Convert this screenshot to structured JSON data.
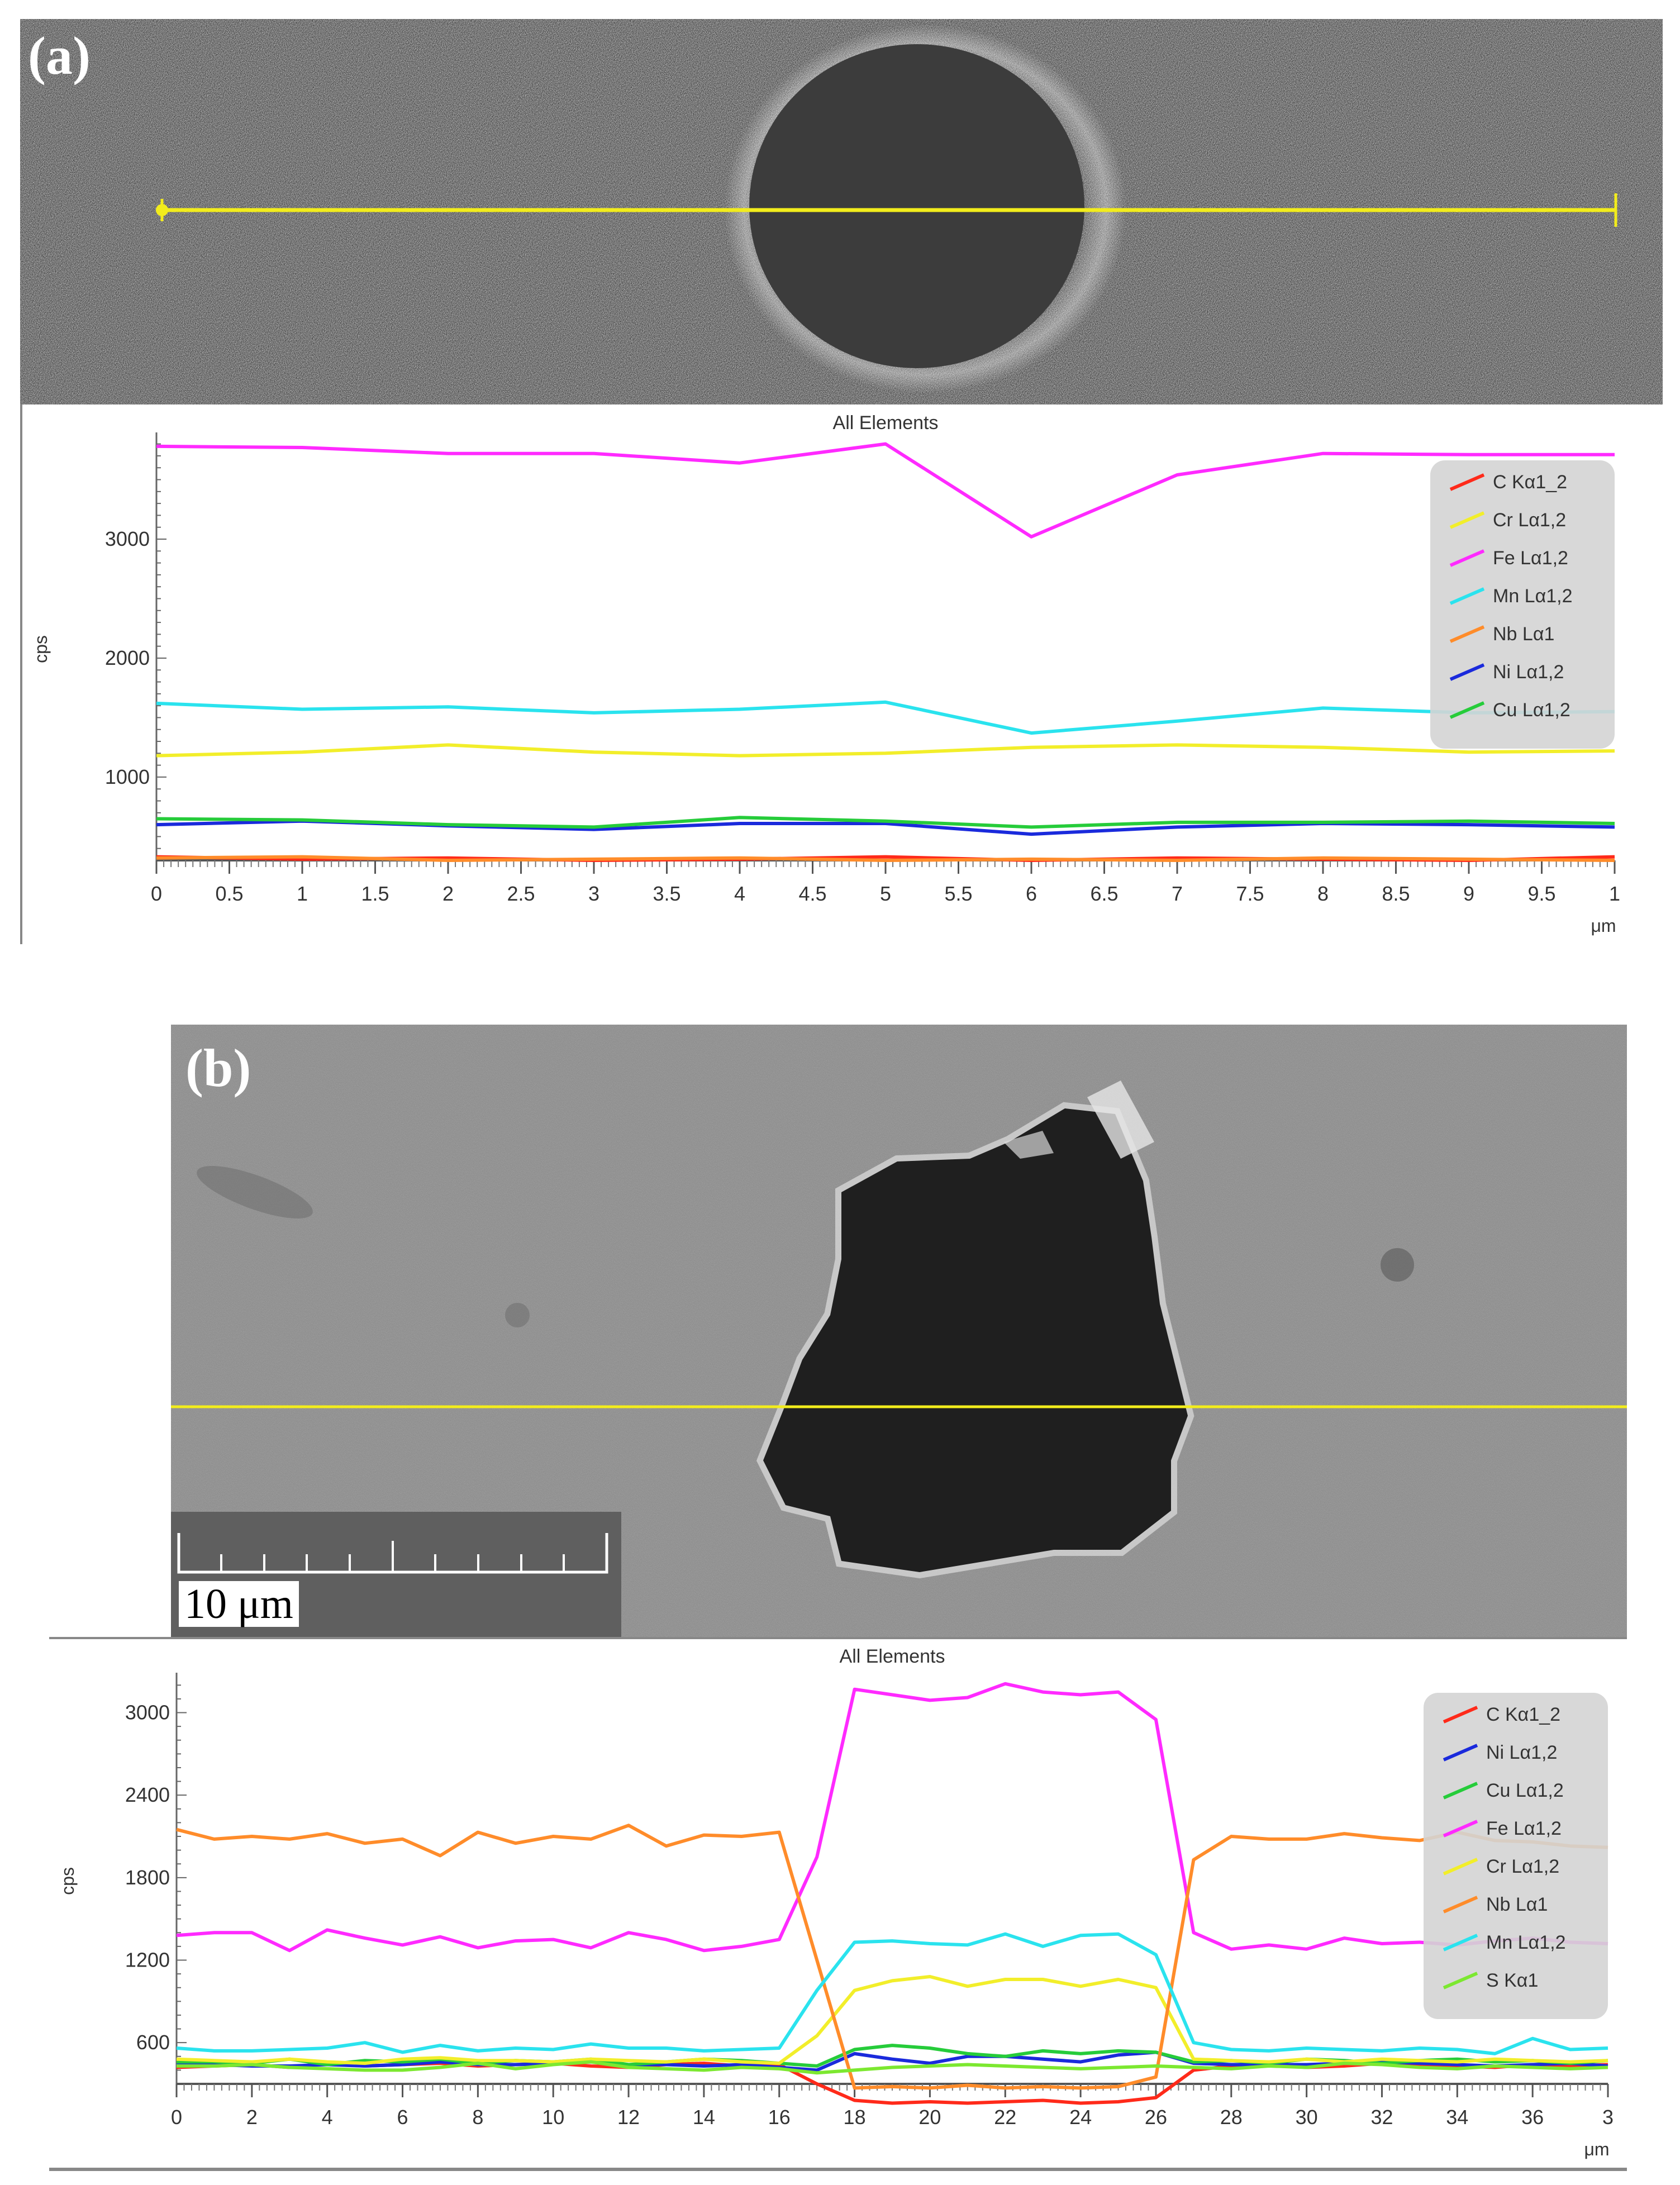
{
  "panels": {
    "a": {
      "letter": "(a)",
      "chart_title": "All Elements"
    },
    "b": {
      "letter": "(b)",
      "chart_title": "All Elements",
      "scale_label": "10 μm"
    }
  },
  "colors": {
    "line_marker": "#f2ec1c"
  },
  "chart_data": [
    {
      "type": "line",
      "title": "All Elements",
      "ylabel": "cps",
      "xunit": "μm",
      "xlim": [
        0,
        10
      ],
      "ylim": [
        300,
        3850
      ],
      "xticks": [
        "0",
        "0.5",
        "1",
        "1.5",
        "2",
        "2.5",
        "3",
        "3.5",
        "4",
        "4.5",
        "5",
        "5.5",
        "6",
        "6.5",
        "7",
        "7.5",
        "8",
        "8.5",
        "9",
        "9.5",
        "1"
      ],
      "yticks": [
        "1000",
        "2000",
        "3000"
      ],
      "legend_position": "top-right",
      "x": [
        0,
        1,
        2,
        3,
        4,
        5,
        6,
        7,
        8,
        9,
        10
      ],
      "series": [
        {
          "name": "C Kα1_2",
          "color": "#ff2a1a",
          "values": [
            330,
            310,
            320,
            300,
            310,
            330,
            300,
            320,
            310,
            300,
            330
          ]
        },
        {
          "name": "Cr Lα1,2",
          "color": "#f2ee2a",
          "values": [
            1180,
            1210,
            1270,
            1210,
            1180,
            1200,
            1250,
            1270,
            1250,
            1210,
            1220
          ]
        },
        {
          "name": "Fe Lα1,2",
          "color": "#ff2aff",
          "values": [
            3780,
            3770,
            3720,
            3720,
            3640,
            3800,
            3020,
            3540,
            3720,
            3710,
            3710
          ]
        },
        {
          "name": "Mn Lα1,2",
          "color": "#2ae3ee",
          "values": [
            1620,
            1570,
            1590,
            1540,
            1570,
            1630,
            1370,
            1470,
            1580,
            1540,
            1550
          ]
        },
        {
          "name": "Nb Lα1",
          "color": "#ff8c2a",
          "values": [
            320,
            330,
            300,
            310,
            320,
            300,
            310,
            300,
            320,
            310,
            300
          ]
        },
        {
          "name": "Ni Lα1,2",
          "color": "#1a2adc",
          "values": [
            600,
            630,
            590,
            560,
            610,
            610,
            520,
            580,
            610,
            600,
            580
          ]
        },
        {
          "name": "Cu Lα1,2",
          "color": "#26cc3a",
          "values": [
            650,
            640,
            600,
            580,
            660,
            630,
            580,
            620,
            620,
            630,
            610
          ]
        }
      ]
    },
    {
      "type": "line",
      "title": "All Elements",
      "ylabel": "cps",
      "xunit": "μm",
      "xlim": [
        0,
        38
      ],
      "ylim": [
        300,
        3250
      ],
      "xticks": [
        "0",
        "2",
        "4",
        "6",
        "8",
        "10",
        "12",
        "14",
        "16",
        "18",
        "20",
        "22",
        "24",
        "26",
        "28",
        "30",
        "32",
        "34",
        "36",
        "3"
      ],
      "yticks": [
        "600",
        "1200",
        "1800",
        "2400",
        "3000"
      ],
      "legend_position": "top-right",
      "x": [
        0,
        1,
        2,
        3,
        4,
        5,
        6,
        7,
        8,
        9,
        10,
        11,
        12,
        13,
        14,
        15,
        16,
        17,
        18,
        19,
        20,
        21,
        22,
        23,
        24,
        25,
        26,
        27,
        28,
        29,
        30,
        31,
        32,
        33,
        34,
        35,
        36,
        37,
        38
      ],
      "series": [
        {
          "name": "C Kα1_2",
          "color": "#ff2a1a",
          "values": [
            420,
            430,
            440,
            420,
            450,
            430,
            440,
            450,
            430,
            440,
            450,
            430,
            420,
            440,
            450,
            430,
            440,
            300,
            180,
            160,
            170,
            160,
            170,
            180,
            160,
            170,
            200,
            400,
            430,
            440,
            420,
            430,
            450,
            440,
            430,
            420,
            440,
            430,
            440
          ]
        },
        {
          "name": "Ni Lα1,2",
          "color": "#1a2adc",
          "values": [
            450,
            440,
            430,
            430,
            440,
            430,
            440,
            460,
            440,
            440,
            450,
            460,
            440,
            440,
            430,
            440,
            420,
            400,
            520,
            480,
            450,
            500,
            500,
            480,
            460,
            510,
            530,
            450,
            440,
            440,
            440,
            450,
            460,
            450,
            440,
            430,
            440,
            450,
            430
          ]
        },
        {
          "name": "Cu Lα1,2",
          "color": "#26cc3a",
          "values": [
            460,
            460,
            450,
            480,
            440,
            470,
            460,
            480,
            450,
            470,
            460,
            480,
            440,
            460,
            480,
            470,
            450,
            430,
            550,
            580,
            560,
            520,
            500,
            540,
            520,
            540,
            530,
            460,
            470,
            450,
            480,
            470,
            450,
            470,
            480,
            460,
            470,
            450,
            470
          ]
        },
        {
          "name": "Fe Lα1,2",
          "color": "#ff2aff",
          "values": [
            1380,
            1400,
            1400,
            1270,
            1420,
            1360,
            1310,
            1370,
            1290,
            1340,
            1350,
            1290,
            1400,
            1350,
            1270,
            1300,
            1350,
            1950,
            3170,
            3130,
            3090,
            3110,
            3210,
            3150,
            3130,
            3150,
            2950,
            1400,
            1280,
            1310,
            1280,
            1360,
            1320,
            1330,
            1310,
            1340,
            1360,
            1330,
            1320
          ]
        },
        {
          "name": "Cr Lα1,2",
          "color": "#f2ee2a",
          "values": [
            480,
            470,
            460,
            480,
            460,
            450,
            480,
            490,
            470,
            470,
            460,
            480,
            470,
            460,
            480,
            460,
            450,
            650,
            980,
            1050,
            1080,
            1010,
            1060,
            1060,
            1010,
            1060,
            1000,
            480,
            470,
            460,
            480,
            460,
            480,
            470,
            460,
            480,
            470,
            460,
            470
          ]
        },
        {
          "name": "Nb Lα1",
          "color": "#ff8c2a",
          "values": [
            2150,
            2080,
            2100,
            2080,
            2120,
            2050,
            2080,
            1960,
            2130,
            2050,
            2100,
            2080,
            2180,
            2030,
            2110,
            2100,
            2130,
            1200,
            270,
            280,
            270,
            290,
            270,
            280,
            270,
            280,
            350,
            1930,
            2100,
            2080,
            2080,
            2120,
            2090,
            2070,
            2130,
            2070,
            2060,
            2030,
            2020
          ]
        },
        {
          "name": "Mn Lα1,2",
          "color": "#2ae3ee",
          "values": [
            560,
            540,
            540,
            550,
            560,
            600,
            530,
            580,
            540,
            560,
            550,
            590,
            560,
            560,
            540,
            550,
            560,
            980,
            1330,
            1340,
            1320,
            1310,
            1390,
            1300,
            1380,
            1390,
            1240,
            600,
            550,
            540,
            560,
            550,
            540,
            560,
            550,
            520,
            630,
            550,
            560
          ]
        },
        {
          "name": "S Kα1",
          "color": "#7ce830",
          "values": [
            430,
            430,
            440,
            420,
            410,
            400,
            400,
            420,
            450,
            410,
            440,
            460,
            420,
            410,
            400,
            420,
            410,
            380,
            400,
            420,
            430,
            440,
            430,
            420,
            410,
            420,
            430,
            420,
            410,
            430,
            420,
            450,
            440,
            420,
            410,
            430,
            420,
            410,
            420
          ]
        }
      ]
    }
  ]
}
